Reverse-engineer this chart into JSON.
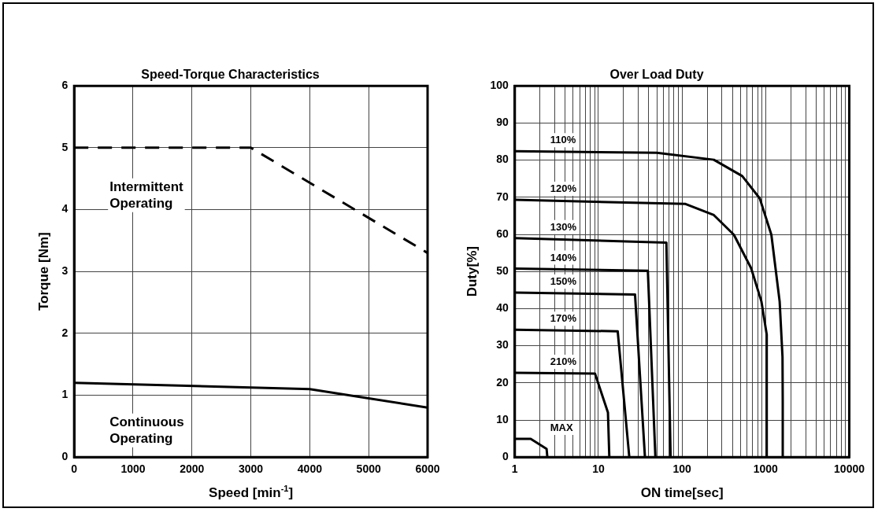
{
  "chart_data": [
    {
      "type": "line",
      "title": "Speed-Torque Characteristics",
      "xlabel": "Speed [min$^{-1}$]",
      "ylabel": "Torque [Nm]",
      "xlim": [
        0,
        6000
      ],
      "xticks": [
        0,
        1000,
        2000,
        3000,
        4000,
        5000,
        6000
      ],
      "ylim": [
        0,
        6
      ],
      "yticks": [
        0,
        1,
        2,
        3,
        4,
        5,
        6
      ],
      "grid": true,
      "marker": "none",
      "series": [
        {
          "color": "#000000",
          "line_style": "dashed",
          "x": [
            0,
            3000,
            6000
          ],
          "values": [
            5,
            5,
            3.3
          ]
        },
        {
          "color": "#000000",
          "line_style": "solid",
          "x": [
            0,
            4000,
            6000
          ],
          "values": [
            1.2,
            1.1,
            0.8
          ]
        }
      ],
      "annotations": [
        "Intermittent Operating",
        "Continuous Operating"
      ]
    },
    {
      "type": "line",
      "title": "Over Load Duty",
      "xlabel": "ON time[sec]",
      "ylabel": "Duty[%]",
      "log": "x",
      "xlim": [
        1,
        10000
      ],
      "xticks": [
        1,
        {
          "value": 2,
          "label": null
        },
        {
          "value": 3,
          "label": null
        },
        {
          "value": 4,
          "label": null
        },
        {
          "value": 5,
          "label": null
        },
        {
          "value": 6,
          "label": null
        },
        {
          "value": 7,
          "label": null
        },
        {
          "value": 8,
          "label": null
        },
        {
          "value": 9,
          "label": null
        },
        10,
        {
          "value": 20,
          "label": null
        },
        {
          "value": 30,
          "label": null
        },
        {
          "value": 40,
          "label": null
        },
        {
          "value": 50,
          "label": null
        },
        {
          "value": 60,
          "label": null
        },
        {
          "value": 70,
          "label": null
        },
        {
          "value": 80,
          "label": null
        },
        {
          "value": 90,
          "label": null
        },
        100,
        {
          "value": 200,
          "label": null
        },
        {
          "value": 300,
          "label": null
        },
        {
          "value": 400,
          "label": null
        },
        {
          "value": 500,
          "label": null
        },
        {
          "value": 600,
          "label": null
        },
        {
          "value": 700,
          "label": null
        },
        {
          "value": 800,
          "label": null
        },
        {
          "value": 900,
          "label": null
        },
        1000,
        {
          "value": 2000,
          "label": null
        },
        {
          "value": 3000,
          "label": null
        },
        {
          "value": 4000,
          "label": null
        },
        {
          "value": 5000,
          "label": null
        },
        {
          "value": 6000,
          "label": null
        },
        {
          "value": 7000,
          "label": null
        },
        {
          "value": 8000,
          "label": null
        },
        {
          "value": 9000,
          "label": null
        },
        10000
      ],
      "ylim": [
        0,
        100
      ],
      "yticks": [
        0,
        10,
        20,
        30,
        40,
        50,
        60,
        70,
        80,
        90,
        100
      ],
      "grid": true,
      "marker": "none",
      "line_style": "solid",
      "series": [
        {
          "name": "110%",
          "color": "#000000",
          "x": [
            1,
            50,
            240,
            525,
            850,
            1170,
            1470,
            1590,
            1600,
            1600
          ],
          "values": [
            82.4,
            82,
            80.1,
            75.7,
            69.7,
            59.9,
            41.9,
            27,
            15,
            0
          ]
        },
        {
          "name": "120%",
          "color": "#000000",
          "x": [
            1,
            110,
            240,
            417,
            670,
            890,
            1030,
            1030
          ],
          "values": [
            69.3,
            68.2,
            65.2,
            59.9,
            50.9,
            41.9,
            33,
            0
          ]
        },
        {
          "name": "130%",
          "color": "#000000",
          "x": [
            1,
            65,
            73
          ],
          "values": [
            59,
            57.8,
            0
          ]
        },
        {
          "name": "140%",
          "color": "#000000",
          "x": [
            1,
            39,
            48
          ],
          "values": [
            50.8,
            50.2,
            0
          ]
        },
        {
          "name": "150%",
          "color": "#000000",
          "x": [
            1,
            27.4,
            36
          ],
          "values": [
            44.3,
            43.8,
            0
          ]
        },
        {
          "name": "170%",
          "color": "#000000",
          "x": [
            1,
            17,
            23.4
          ],
          "values": [
            34.3,
            33.9,
            0
          ]
        },
        {
          "name": "210%",
          "color": "#000000",
          "x": [
            1,
            9.1,
            13,
            13.5
          ],
          "values": [
            22.7,
            22.5,
            12,
            0
          ]
        },
        {
          "name": "MAX",
          "color": "#000000",
          "x": [
            1,
            1.55,
            2.4,
            2.45
          ],
          "values": [
            4.9,
            4.9,
            2.2,
            0
          ]
        }
      ]
    }
  ]
}
